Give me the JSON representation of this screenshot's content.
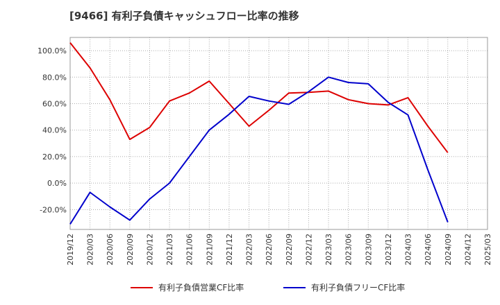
{
  "chart_data": {
    "type": "line",
    "title": "[9466]  有利子負債キャッシュフロー比率の推移",
    "x": [
      "2019/12",
      "2020/03",
      "2020/06",
      "2020/09",
      "2020/12",
      "2021/03",
      "2021/06",
      "2021/09",
      "2021/12",
      "2022/03",
      "2022/06",
      "2022/09",
      "2022/12",
      "2023/03",
      "2023/06",
      "2023/09",
      "2023/12",
      "2024/03",
      "2024/06",
      "2024/09",
      "2024/12",
      "2025/03"
    ],
    "ylim": [
      -35,
      110
    ],
    "yticks": [
      -20,
      0,
      20,
      40,
      60,
      80,
      100
    ],
    "ytick_labels": [
      "-20.0%",
      "0.0%",
      "20.0%",
      "40.0%",
      "60.0%",
      "80.0%",
      "100.0%"
    ],
    "grid": true,
    "legend_position": "bottom",
    "series": [
      {
        "name": "有利子負債営業CF比率",
        "color": "#dd0000",
        "values": [
          106,
          87,
          63,
          33,
          42,
          62,
          68,
          77,
          60,
          43,
          55,
          68,
          68.5,
          69.5,
          63,
          60,
          59,
          64.5,
          43,
          23,
          null,
          null
        ]
      },
      {
        "name": "有利子負債フリーCF比率",
        "color": "#0000cc",
        "values": [
          -31,
          -7,
          -18,
          -28,
          -12,
          0,
          20,
          40,
          52,
          65.5,
          62,
          59.5,
          69,
          80,
          76,
          75,
          61,
          51.5,
          10,
          -29.5,
          null,
          null
        ]
      }
    ]
  }
}
